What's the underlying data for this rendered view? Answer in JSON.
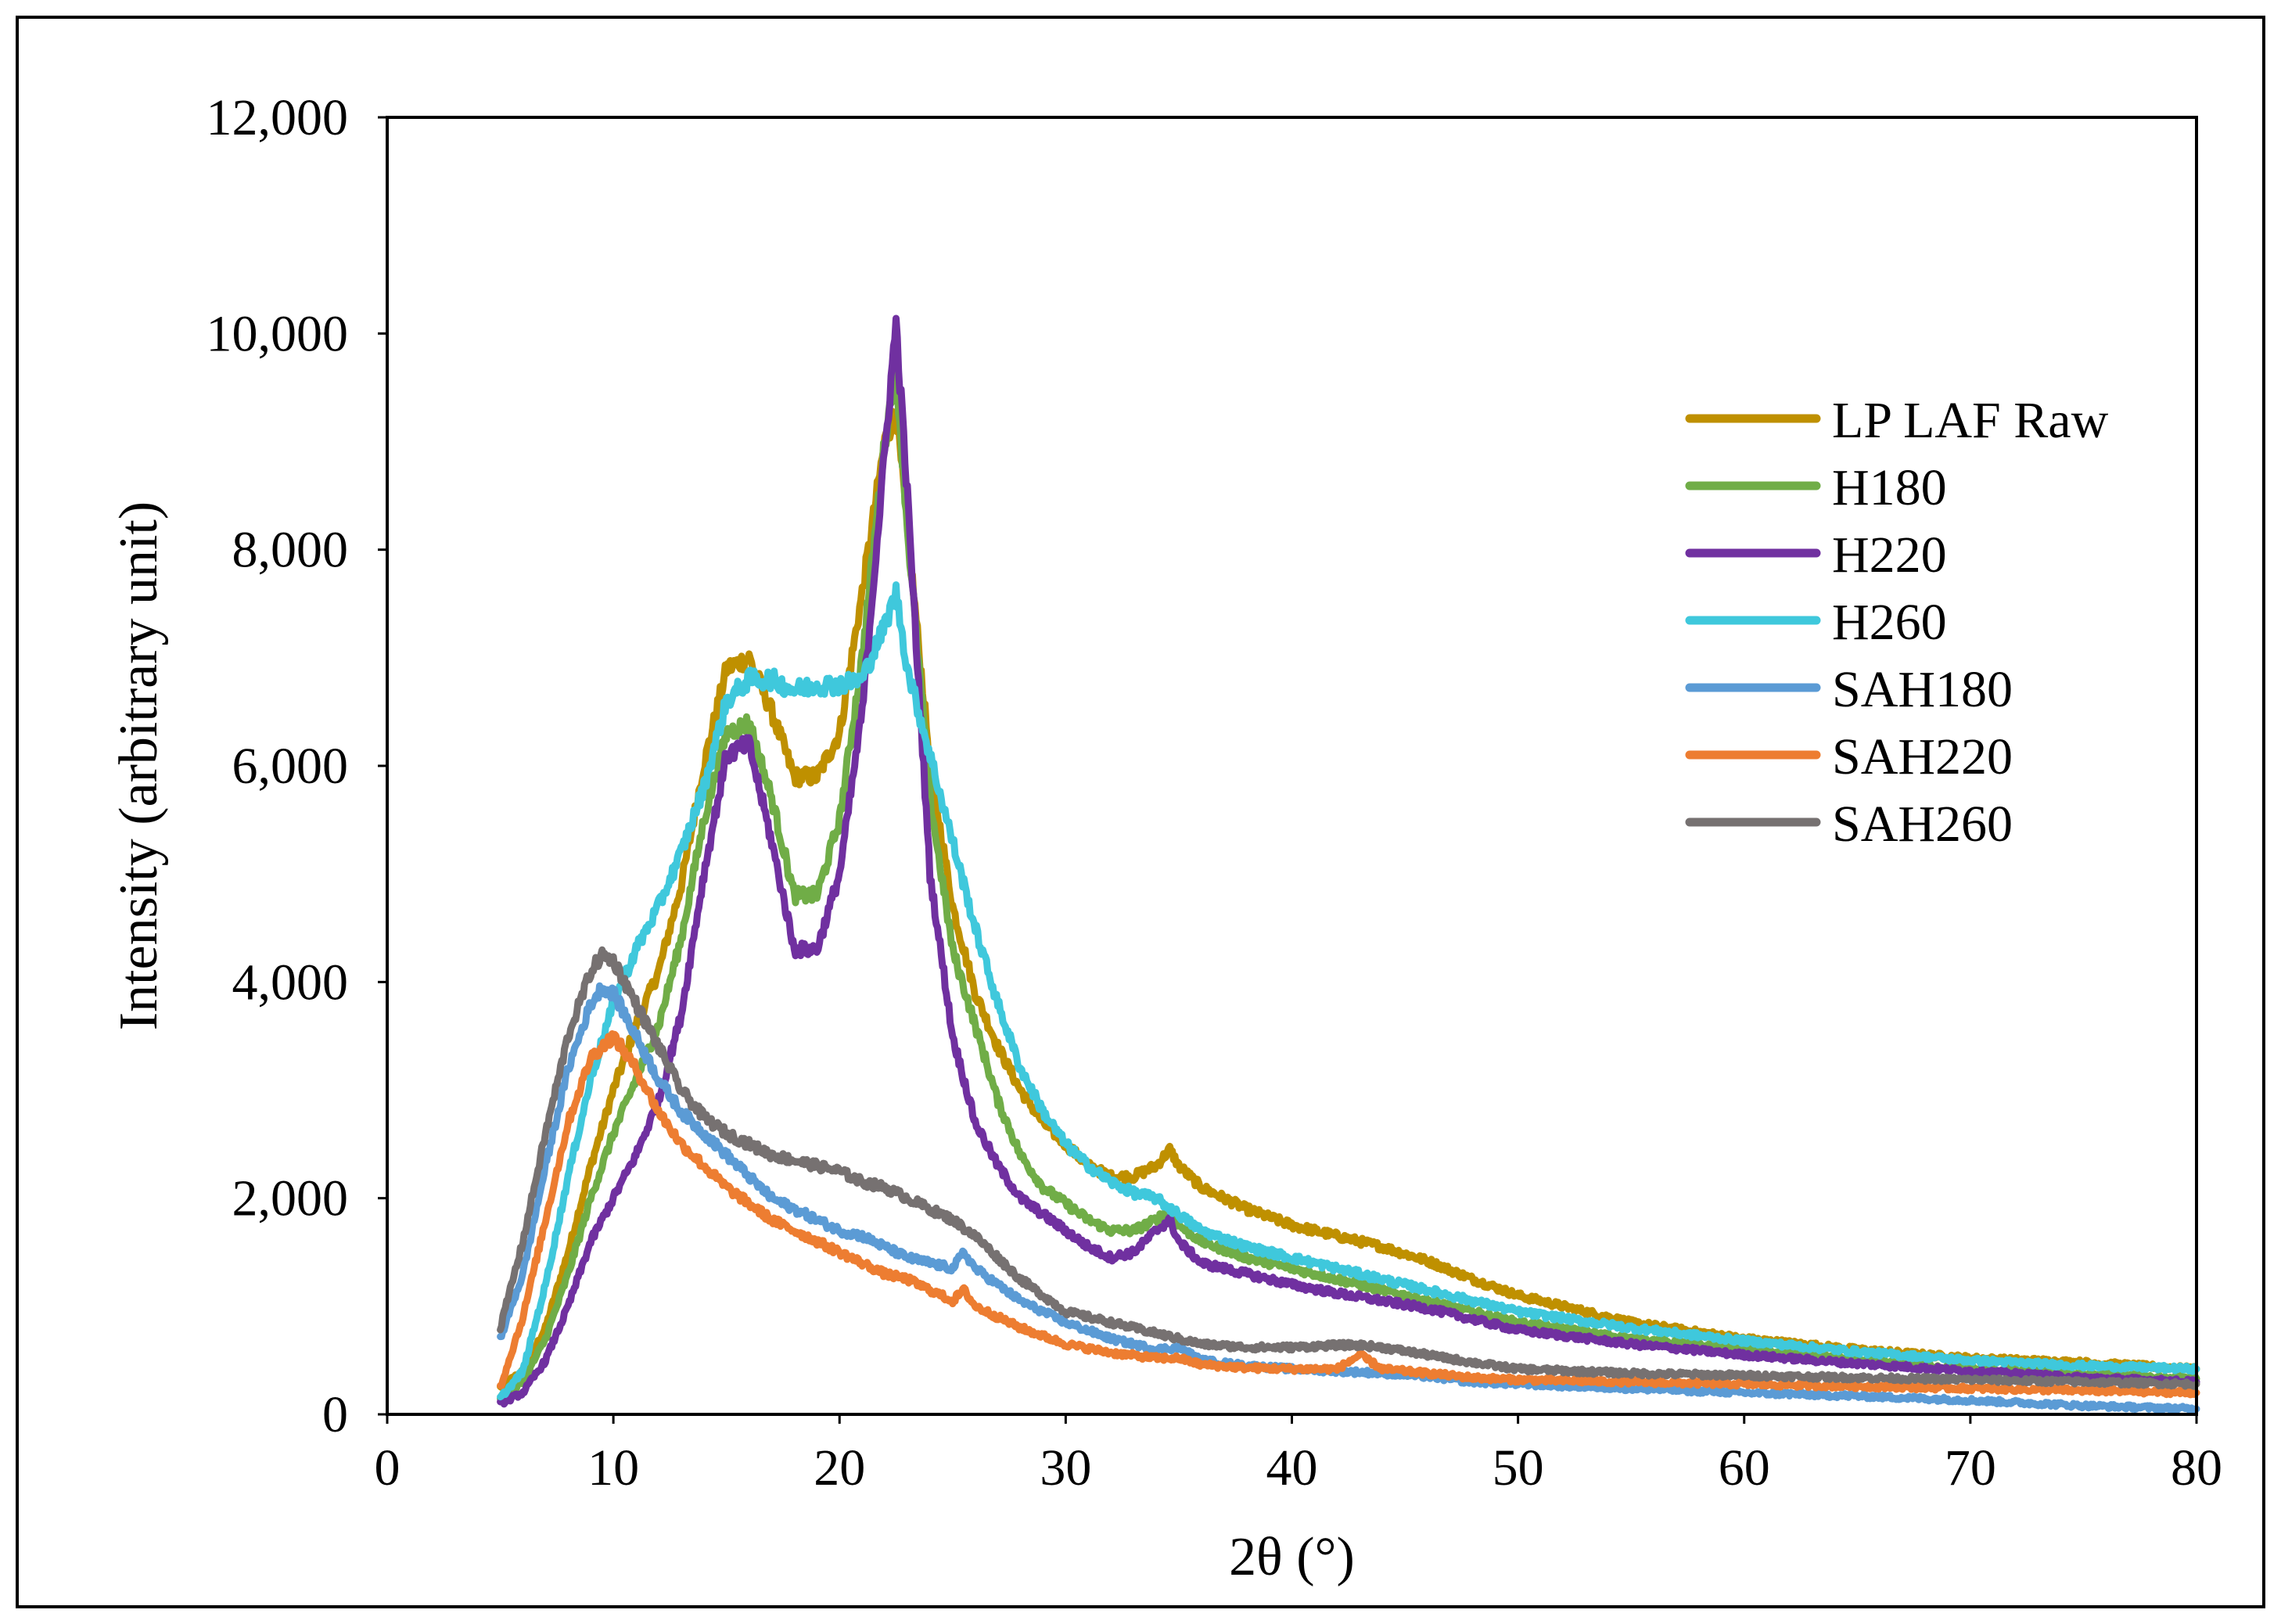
{
  "chart_data": {
    "type": "line",
    "title": "",
    "xlabel": "2θ (°)",
    "ylabel": "Intensity (arbitrary unit)",
    "xlim": [
      0,
      80
    ],
    "ylim": [
      0,
      12000
    ],
    "x_ticks": [
      0,
      10,
      20,
      30,
      40,
      50,
      60,
      70,
      80
    ],
    "y_ticks": [
      0,
      2000,
      4000,
      6000,
      8000,
      10000,
      12000
    ],
    "x_tick_labels": [
      "0",
      "10",
      "20",
      "30",
      "40",
      "50",
      "60",
      "70",
      "80"
    ],
    "y_tick_labels": [
      "0",
      "2,000",
      "4,000",
      "6,000",
      "8,000",
      "10,000",
      "12,000"
    ],
    "grid": false,
    "legend_position": "right",
    "series": [
      {
        "name": "LP LAF Raw",
        "color": "#BF9000",
        "points": [
          [
            5,
            250
          ],
          [
            6,
            400
          ],
          [
            7,
            800
          ],
          [
            8,
            1500
          ],
          [
            9,
            2300
          ],
          [
            10,
            3000
          ],
          [
            11,
            3600
          ],
          [
            12,
            4100
          ],
          [
            13,
            4900
          ],
          [
            14,
            6000
          ],
          [
            15,
            6900
          ],
          [
            16,
            7000
          ],
          [
            17,
            6500
          ],
          [
            18,
            5900
          ],
          [
            19,
            5900
          ],
          [
            20,
            6300
          ],
          [
            21,
            7600
          ],
          [
            22,
            9000
          ],
          [
            22.5,
            9300
          ],
          [
            23,
            8200
          ],
          [
            24,
            6000
          ],
          [
            25,
            4700
          ],
          [
            26,
            3900
          ],
          [
            27,
            3400
          ],
          [
            28,
            3000
          ],
          [
            29,
            2700
          ],
          [
            30,
            2500
          ],
          [
            31,
            2300
          ],
          [
            32,
            2200
          ],
          [
            33,
            2200
          ],
          [
            34,
            2300
          ],
          [
            34.6,
            2450
          ],
          [
            35,
            2300
          ],
          [
            36,
            2100
          ],
          [
            38,
            1900
          ],
          [
            40,
            1750
          ],
          [
            42,
            1650
          ],
          [
            44,
            1550
          ],
          [
            46,
            1420
          ],
          [
            48,
            1250
          ],
          [
            50,
            1100
          ],
          [
            55,
            850
          ],
          [
            60,
            700
          ],
          [
            65,
            600
          ],
          [
            70,
            520
          ],
          [
            75,
            480
          ],
          [
            80,
            420
          ]
        ]
      },
      {
        "name": "H180",
        "color": "#70AD47",
        "points": [
          [
            5,
            150
          ],
          [
            6,
            300
          ],
          [
            7,
            700
          ],
          [
            8,
            1300
          ],
          [
            9,
            2000
          ],
          [
            10,
            2600
          ],
          [
            11,
            3100
          ],
          [
            12,
            3600
          ],
          [
            13,
            4400
          ],
          [
            14,
            5500
          ],
          [
            15,
            6300
          ],
          [
            16,
            6400
          ],
          [
            17,
            5700
          ],
          [
            18,
            4800
          ],
          [
            19,
            4800
          ],
          [
            20,
            5500
          ],
          [
            21,
            7000
          ],
          [
            22,
            9000
          ],
          [
            22.5,
            9700
          ],
          [
            23,
            8200
          ],
          [
            24,
            5700
          ],
          [
            25,
            4300
          ],
          [
            26,
            3600
          ],
          [
            27,
            2900
          ],
          [
            28,
            2400
          ],
          [
            29,
            2100
          ],
          [
            30,
            1950
          ],
          [
            31,
            1800
          ],
          [
            32,
            1700
          ],
          [
            33,
            1700
          ],
          [
            34,
            1800
          ],
          [
            34.6,
            1900
          ],
          [
            35,
            1750
          ],
          [
            36,
            1600
          ],
          [
            38,
            1450
          ],
          [
            40,
            1350
          ],
          [
            42,
            1250
          ],
          [
            44,
            1150
          ],
          [
            46,
            1050
          ],
          [
            48,
            950
          ],
          [
            50,
            850
          ],
          [
            55,
            700
          ],
          [
            60,
            600
          ],
          [
            65,
            500
          ],
          [
            70,
            420
          ],
          [
            75,
            370
          ],
          [
            80,
            330
          ]
        ]
      },
      {
        "name": "H220",
        "color": "#7030A0",
        "points": [
          [
            5,
            100
          ],
          [
            6,
            200
          ],
          [
            7,
            500
          ],
          [
            8,
            1000
          ],
          [
            9,
            1600
          ],
          [
            10,
            2000
          ],
          [
            11,
            2400
          ],
          [
            12,
            2900
          ],
          [
            13,
            3700
          ],
          [
            14,
            5000
          ],
          [
            15,
            6100
          ],
          [
            16,
            6200
          ],
          [
            17,
            5300
          ],
          [
            18,
            4300
          ],
          [
            19,
            4300
          ],
          [
            20,
            5000
          ],
          [
            21,
            6500
          ],
          [
            22,
            8900
          ],
          [
            22.5,
            10100
          ],
          [
            23,
            8500
          ],
          [
            24,
            5000
          ],
          [
            25,
            3500
          ],
          [
            26,
            2700
          ],
          [
            27,
            2300
          ],
          [
            28,
            2000
          ],
          [
            29,
            1850
          ],
          [
            30,
            1700
          ],
          [
            31,
            1550
          ],
          [
            32,
            1450
          ],
          [
            33,
            1500
          ],
          [
            34,
            1700
          ],
          [
            34.6,
            1800
          ],
          [
            35,
            1600
          ],
          [
            36,
            1400
          ],
          [
            38,
            1300
          ],
          [
            40,
            1200
          ],
          [
            42,
            1120
          ],
          [
            44,
            1050
          ],
          [
            46,
            980
          ],
          [
            48,
            880
          ],
          [
            50,
            780
          ],
          [
            55,
            650
          ],
          [
            60,
            550
          ],
          [
            65,
            470
          ],
          [
            70,
            400
          ],
          [
            75,
            340
          ],
          [
            80,
            300
          ]
        ]
      },
      {
        "name": "H260",
        "color": "#3FC8DC",
        "points": [
          [
            5,
            150
          ],
          [
            6,
            400
          ],
          [
            7,
            1200
          ],
          [
            8,
            2200
          ],
          [
            9,
            3100
          ],
          [
            10,
            3800
          ],
          [
            11,
            4300
          ],
          [
            12,
            4700
          ],
          [
            13,
            5200
          ],
          [
            14,
            5800
          ],
          [
            15,
            6600
          ],
          [
            16,
            6800
          ],
          [
            17,
            6800
          ],
          [
            18,
            6700
          ],
          [
            19,
            6750
          ],
          [
            20,
            6750
          ],
          [
            21,
            6800
          ],
          [
            22,
            7300
          ],
          [
            22.5,
            7600
          ],
          [
            23,
            6900
          ],
          [
            24,
            6100
          ],
          [
            25,
            5300
          ],
          [
            26,
            4500
          ],
          [
            27,
            3800
          ],
          [
            28,
            3200
          ],
          [
            29,
            2800
          ],
          [
            30,
            2500
          ],
          [
            31,
            2300
          ],
          [
            32,
            2150
          ],
          [
            33,
            2050
          ],
          [
            34,
            2000
          ],
          [
            35,
            1850
          ],
          [
            36,
            1700
          ],
          [
            38,
            1550
          ],
          [
            40,
            1450
          ],
          [
            42,
            1350
          ],
          [
            44,
            1250
          ],
          [
            46,
            1150
          ],
          [
            48,
            1050
          ],
          [
            50,
            950
          ],
          [
            55,
            800
          ],
          [
            60,
            680
          ],
          [
            65,
            580
          ],
          [
            70,
            500
          ],
          [
            75,
            450
          ],
          [
            80,
            420
          ]
        ]
      },
      {
        "name": "SAH180",
        "color": "#5B9BD5",
        "points": [
          [
            5,
            700
          ],
          [
            6,
            1300
          ],
          [
            7,
            2300
          ],
          [
            8,
            3200
          ],
          [
            9,
            3800
          ],
          [
            9.5,
            3950
          ],
          [
            10,
            3900
          ],
          [
            11,
            3500
          ],
          [
            12,
            3100
          ],
          [
            13,
            2800
          ],
          [
            14,
            2600
          ],
          [
            15,
            2400
          ],
          [
            16,
            2200
          ],
          [
            17,
            2000
          ],
          [
            18,
            1900
          ],
          [
            19,
            1800
          ],
          [
            20,
            1700
          ],
          [
            21,
            1650
          ],
          [
            22,
            1550
          ],
          [
            23,
            1450
          ],
          [
            24,
            1400
          ],
          [
            25,
            1350
          ],
          [
            25.5,
            1500
          ],
          [
            26,
            1350
          ],
          [
            27,
            1200
          ],
          [
            28,
            1050
          ],
          [
            30,
            850
          ],
          [
            32,
            700
          ],
          [
            34,
            600
          ],
          [
            35,
            620
          ],
          [
            36,
            500
          ],
          [
            38,
            450
          ],
          [
            40,
            420
          ],
          [
            42,
            400
          ],
          [
            44,
            380
          ],
          [
            46,
            350
          ],
          [
            48,
            300
          ],
          [
            50,
            280
          ],
          [
            55,
            240
          ],
          [
            60,
            200
          ],
          [
            65,
            170
          ],
          [
            70,
            130
          ],
          [
            75,
            80
          ],
          [
            80,
            50
          ]
        ]
      },
      {
        "name": "SAH220",
        "color": "#ED7D31",
        "points": [
          [
            5,
            250
          ],
          [
            6,
            900
          ],
          [
            7,
            1800
          ],
          [
            8,
            2700
          ],
          [
            9,
            3300
          ],
          [
            10,
            3500
          ],
          [
            11,
            3200
          ],
          [
            12,
            2800
          ],
          [
            13,
            2500
          ],
          [
            14,
            2300
          ],
          [
            15,
            2100
          ],
          [
            16,
            1950
          ],
          [
            17,
            1800
          ],
          [
            18,
            1700
          ],
          [
            19,
            1600
          ],
          [
            20,
            1500
          ],
          [
            21,
            1400
          ],
          [
            22,
            1300
          ],
          [
            23,
            1250
          ],
          [
            24,
            1150
          ],
          [
            25,
            1050
          ],
          [
            25.5,
            1150
          ],
          [
            26,
            1000
          ],
          [
            27,
            900
          ],
          [
            28,
            800
          ],
          [
            30,
            650
          ],
          [
            32,
            570
          ],
          [
            34,
            520
          ],
          [
            35,
            520
          ],
          [
            36,
            460
          ],
          [
            38,
            430
          ],
          [
            40,
            420
          ],
          [
            42,
            420
          ],
          [
            43,
            550
          ],
          [
            44,
            420
          ],
          [
            46,
            380
          ],
          [
            48,
            340
          ],
          [
            50,
            320
          ],
          [
            55,
            300
          ],
          [
            60,
            280
          ],
          [
            65,
            260
          ],
          [
            70,
            240
          ],
          [
            75,
            220
          ],
          [
            80,
            200
          ]
        ]
      },
      {
        "name": "SAH260",
        "color": "#767171",
        "points": [
          [
            5,
            800
          ],
          [
            6,
            1600
          ],
          [
            7,
            2600
          ],
          [
            8,
            3500
          ],
          [
            9,
            4100
          ],
          [
            9.5,
            4250
          ],
          [
            10,
            4200
          ],
          [
            11,
            3800
          ],
          [
            12,
            3400
          ],
          [
            13,
            3000
          ],
          [
            14,
            2750
          ],
          [
            15,
            2600
          ],
          [
            16,
            2500
          ],
          [
            17,
            2400
          ],
          [
            18,
            2350
          ],
          [
            19,
            2300
          ],
          [
            20,
            2250
          ],
          [
            21,
            2150
          ],
          [
            22,
            2100
          ],
          [
            23,
            2000
          ],
          [
            24,
            1900
          ],
          [
            25,
            1800
          ],
          [
            26,
            1650
          ],
          [
            27,
            1450
          ],
          [
            28,
            1250
          ],
          [
            29,
            1100
          ],
          [
            30,
            950
          ],
          [
            32,
            850
          ],
          [
            34,
            750
          ],
          [
            35,
            700
          ],
          [
            36,
            650
          ],
          [
            38,
            620
          ],
          [
            40,
            620
          ],
          [
            42,
            640
          ],
          [
            43,
            640
          ],
          [
            44,
            620
          ],
          [
            46,
            550
          ],
          [
            48,
            480
          ],
          [
            50,
            420
          ],
          [
            55,
            380
          ],
          [
            60,
            360
          ],
          [
            65,
            340
          ],
          [
            70,
            320
          ],
          [
            75,
            300
          ],
          [
            80,
            280
          ]
        ]
      }
    ]
  }
}
